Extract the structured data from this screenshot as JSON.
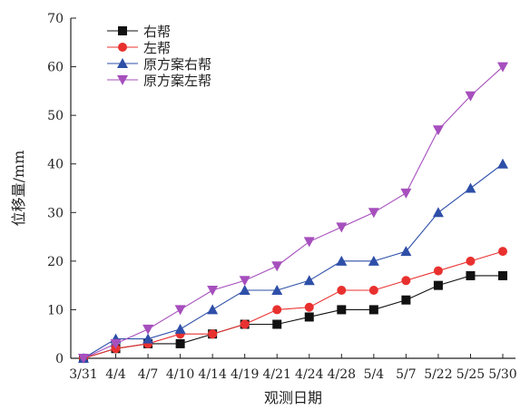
{
  "chart_data": {
    "type": "line",
    "title": "",
    "xlabel": "观测日期",
    "ylabel": "位移量/mm",
    "ylim": [
      0,
      70
    ],
    "yticks": [
      0,
      10,
      20,
      30,
      40,
      50,
      60,
      70
    ],
    "categories": [
      "3/31",
      "4/4",
      "4/7",
      "4/10",
      "4/14",
      "4/19",
      "4/21",
      "4/24",
      "4/28",
      "5/4",
      "5/7",
      "5/22",
      "5/25",
      "5/30"
    ],
    "grid": false,
    "legend_position": "top-left",
    "series": [
      {
        "name": "右帮",
        "color": "#111111",
        "marker": "square",
        "values": [
          0,
          2,
          3,
          3,
          5,
          7,
          7,
          8.5,
          10,
          10,
          12,
          15,
          17,
          17
        ]
      },
      {
        "name": "左帮",
        "color": "#e8312f",
        "marker": "circle",
        "values": [
          0,
          2,
          3,
          5,
          5,
          7,
          10,
          10.5,
          14,
          14,
          16,
          18,
          20,
          22
        ]
      },
      {
        "name": "原方案右帮",
        "color": "#2e4fa8",
        "marker": "triangle-up",
        "values": [
          0,
          4,
          4,
          6,
          10,
          14,
          14,
          16,
          20,
          20,
          22,
          30,
          35,
          40
        ]
      },
      {
        "name": "原方案左帮",
        "color": "#a64fbd",
        "marker": "triangle-down",
        "values": [
          0,
          3,
          6,
          10,
          14,
          16,
          19,
          24,
          27,
          30,
          34,
          47,
          54,
          60
        ]
      }
    ]
  }
}
